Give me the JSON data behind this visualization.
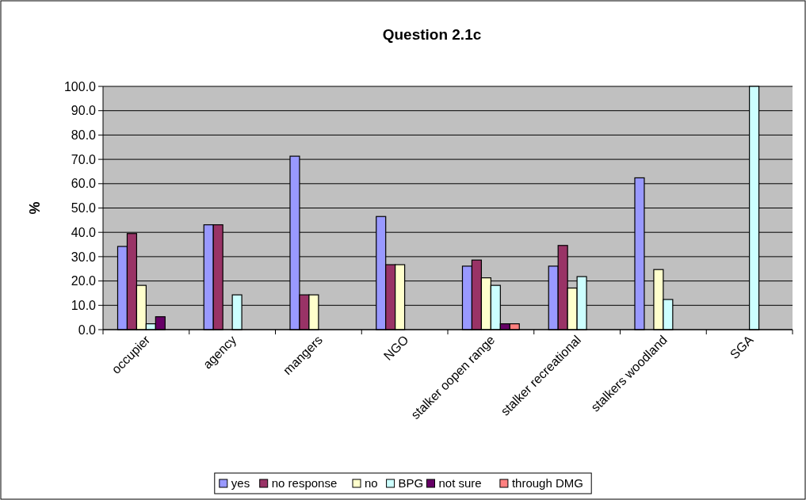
{
  "chart_data": {
    "type": "bar",
    "title": "Question 2.1c",
    "ylabel": "%",
    "categories": [
      "occupier",
      "agency",
      "mangers",
      "NGO",
      "stalker oopen range",
      "stalker recreational",
      "stalkers woodland",
      "SGA"
    ],
    "series": [
      {
        "name": "yes",
        "color": "#9999ff",
        "values": [
          34.2,
          43.1,
          71.3,
          46.5,
          26.1,
          26.1,
          62.4,
          null
        ]
      },
      {
        "name": "no response",
        "color": "#993366",
        "values": [
          39.5,
          43.1,
          14.3,
          26.7,
          28.6,
          34.6,
          null,
          null
        ]
      },
      {
        "name": "no",
        "color": "#ffffcc",
        "values": [
          18.2,
          null,
          14.3,
          26.7,
          21.3,
          17.1,
          24.7,
          null
        ]
      },
      {
        "name": "BPG",
        "color": "#ccffff",
        "values": [
          2.4,
          14.3,
          null,
          null,
          18.2,
          21.8,
          12.4,
          100
        ]
      },
      {
        "name": "not sure",
        "color": "#660066",
        "values": [
          5.3,
          null,
          null,
          null,
          2.4,
          null,
          null,
          null
        ]
      },
      {
        "name": "through DMG",
        "color": "#ff8080",
        "values": [
          null,
          null,
          null,
          null,
          2.4,
          null,
          null,
          null
        ]
      }
    ],
    "ylim": [
      0,
      100
    ],
    "yticks": [
      {
        "value": 0,
        "label": "0.0"
      },
      {
        "value": 10,
        "label": "10.0"
      },
      {
        "value": 20,
        "label": "20.0"
      },
      {
        "value": 30,
        "label": "30.0"
      },
      {
        "value": 40,
        "label": "40.0"
      },
      {
        "value": 50,
        "label": "50.0"
      },
      {
        "value": 60,
        "label": "60.0"
      },
      {
        "value": 70,
        "label": "70.0"
      },
      {
        "value": 80,
        "label": "80.0"
      },
      {
        "value": 90,
        "label": "90.0"
      },
      {
        "value": 100,
        "label": "100.0"
      }
    ],
    "grid": "y",
    "legend": "bottom"
  }
}
